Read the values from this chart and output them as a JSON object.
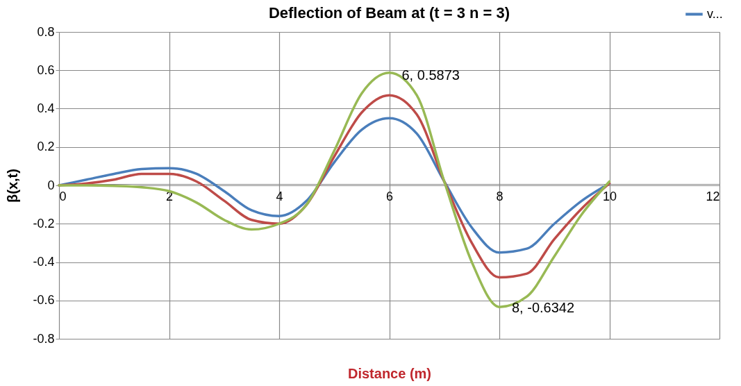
{
  "chart_data": {
    "type": "line",
    "title": "Deflection of Beam at (t = 3 n = 3)",
    "xlabel": "Distance (m)",
    "ylabel": "β(x,t)",
    "x": [
      0,
      0.5,
      1,
      1.5,
      2,
      2.5,
      3,
      3.5,
      4,
      4.5,
      5,
      5.5,
      6,
      6.5,
      7,
      7.5,
      8,
      8.5,
      9,
      9.5,
      10
    ],
    "series": [
      {
        "name": "v...",
        "color": "#4a7ebb",
        "values": [
          0,
          0.03,
          0.06,
          0.085,
          0.09,
          0.06,
          -0.03,
          -0.13,
          -0.16,
          -0.08,
          0.12,
          0.29,
          0.35,
          0.27,
          0.02,
          -0.22,
          -0.35,
          -0.33,
          -0.2,
          -0.08,
          0.01
        ]
      },
      {
        "color": "#be4b48",
        "values": [
          0,
          0.01,
          0.03,
          0.06,
          0.06,
          0.02,
          -0.08,
          -0.18,
          -0.2,
          -0.1,
          0.15,
          0.38,
          0.47,
          0.37,
          0.02,
          -0.3,
          -0.48,
          -0.46,
          -0.28,
          -0.12,
          0.01
        ]
      },
      {
        "color": "#98b954",
        "values": [
          0,
          0,
          -0.003,
          -0.01,
          -0.03,
          -0.09,
          -0.18,
          -0.23,
          -0.2,
          -0.1,
          0.18,
          0.48,
          0.5873,
          0.47,
          0.02,
          -0.4,
          -0.6342,
          -0.58,
          -0.37,
          -0.15,
          0.02
        ]
      }
    ],
    "annotations": [
      {
        "text": "6, 0.5873",
        "x": 6,
        "y": 0.5873
      },
      {
        "text": "8, -0.6342",
        "x": 8,
        "y": -0.6342
      }
    ],
    "xlim": [
      0,
      12
    ],
    "xticks": [
      0,
      2,
      4,
      6,
      8,
      10,
      12
    ],
    "ylim": [
      -0.8,
      0.8
    ],
    "yticks": [
      -0.8,
      -0.6,
      -0.4,
      -0.2,
      0,
      0.2,
      0.4,
      0.6,
      0.8
    ],
    "grid": true,
    "legend": "top right",
    "marker": "none",
    "line_style": "solid"
  }
}
